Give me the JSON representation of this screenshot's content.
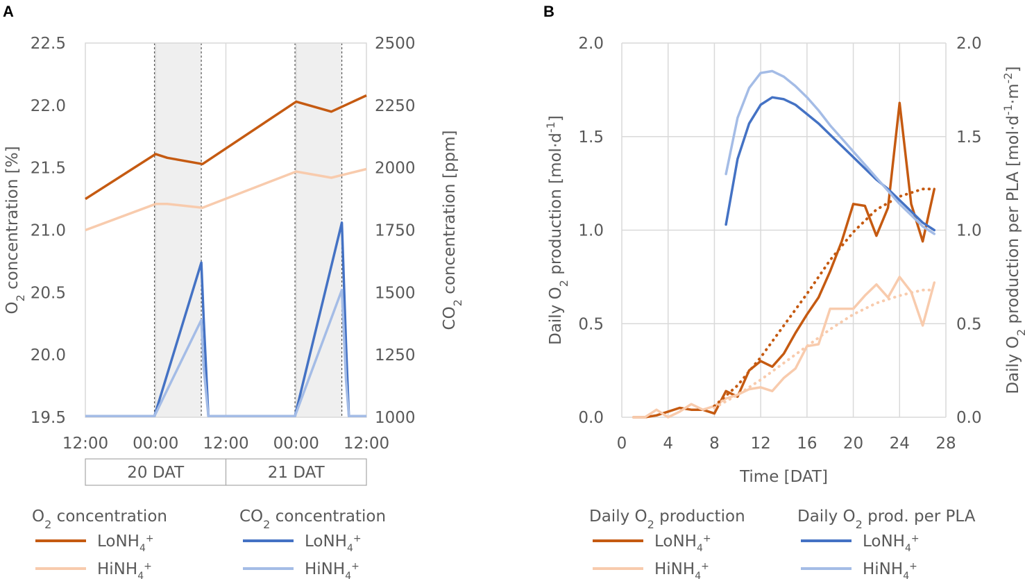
{
  "panel_labels": [
    "A",
    "B"
  ],
  "chart_data": [
    {
      "type": "line",
      "panel": "A",
      "x_ticks": [
        "12:00",
        "00:00",
        "12:00",
        "00:00",
        "12:00"
      ],
      "x_hours": [
        0,
        12,
        24,
        36,
        48
      ],
      "xlim": [
        0,
        48
      ],
      "day_labels": [
        "20 DAT",
        "21 DAT"
      ],
      "dark_periods_hours": [
        [
          11.8,
          19.8
        ],
        [
          35.8,
          43.8
        ]
      ],
      "ylabel_left": {
        "pre": "O",
        "sub": "2",
        "post": " concentration [%]"
      },
      "ylabel_right": {
        "pre": "CO",
        "sub": "2",
        "post": " concentration [ppm]"
      },
      "ylim_left": [
        19.5,
        22.5
      ],
      "ylim_right": [
        1000,
        2500
      ],
      "yticks_left": [
        "19.5",
        "20.0",
        "20.5",
        "21.0",
        "21.5",
        "22.0",
        "22.5"
      ],
      "yticks_right": [
        "1000",
        "1250",
        "1500",
        "1750",
        "2000",
        "2250",
        "2500"
      ],
      "series": [
        {
          "name": "O2 LoNH4+",
          "axis": "left",
          "color": "#C55A11",
          "x": [
            0,
            12,
            14,
            20,
            36,
            42,
            48
          ],
          "y": [
            21.25,
            21.61,
            21.58,
            21.53,
            22.03,
            21.95,
            22.08
          ]
        },
        {
          "name": "O2 HiNH4+",
          "axis": "left",
          "color": "#F8CBAD",
          "x": [
            0,
            12,
            14,
            20,
            36,
            42,
            48
          ],
          "y": [
            21.0,
            21.21,
            21.21,
            21.18,
            21.47,
            21.42,
            21.49
          ]
        },
        {
          "name": "CO2 LoNH4+",
          "axis": "right",
          "color": "#4472C4",
          "x": [
            0,
            11.8,
            19.8,
            20.2,
            21,
            35.8,
            43.8,
            44.5,
            45,
            48
          ],
          "y": [
            1005,
            1005,
            1620,
            1400,
            1005,
            1005,
            1780,
            1300,
            1005,
            1005
          ]
        },
        {
          "name": "CO2 HiNH4+",
          "axis": "right",
          "color": "#A4BCE6",
          "x": [
            0,
            11.8,
            19.8,
            20.2,
            21,
            35.8,
            43.8,
            44.5,
            45,
            48
          ],
          "y": [
            1005,
            1005,
            1390,
            1200,
            1005,
            1005,
            1510,
            1150,
            1005,
            1005
          ]
        }
      ],
      "legend": {
        "groups": [
          {
            "title_pre": "O",
            "title_sub": "2",
            "title_post": " concentration",
            "items": [
              {
                "label": "LoNH",
                "sub": "4",
                "sup": "+",
                "color": "#C55A11"
              },
              {
                "label": "HiNH",
                "sub": "4",
                "sup": "+",
                "color": "#F8CBAD"
              }
            ]
          },
          {
            "title_pre": "CO",
            "title_sub": "2",
            "title_post": " concentration",
            "items": [
              {
                "label": "LoNH",
                "sub": "4",
                "sup": "+",
                "color": "#4472C4"
              },
              {
                "label": "HiNH",
                "sub": "4",
                "sup": "+",
                "color": "#A4BCE6"
              }
            ]
          }
        ]
      }
    },
    {
      "type": "line",
      "panel": "B",
      "xlabel": "Time [DAT]",
      "xlim": [
        0,
        28
      ],
      "xticks": [
        0,
        4,
        8,
        12,
        16,
        20,
        24,
        28
      ],
      "ylim_left": [
        0,
        2
      ],
      "ylim_right": [
        0,
        2
      ],
      "yticks_left": [
        "0.0",
        "0.5",
        "1.0",
        "1.5",
        "2.0"
      ],
      "yticks_right": [
        "0.0",
        "0.5",
        "1.0",
        "1.5",
        "2.0"
      ],
      "ylabel_left": {
        "pre": "Daily O",
        "sub": "2",
        "post": " production [mol·d",
        "sup": "-1",
        "end": "]"
      },
      "ylabel_right": {
        "pre": "Daily O",
        "sub": "2",
        "post": " production per PLA [mol·d",
        "sup": "-1",
        "mid": "·m",
        "sup2": "-2",
        "end": "]"
      },
      "series": [
        {
          "name": "Daily O2 production LoNH4+",
          "axis": "left",
          "color": "#C55A11",
          "style": "solid",
          "x": [
            1,
            2,
            3,
            4,
            5,
            6,
            7,
            8,
            9,
            10,
            11,
            12,
            13,
            14,
            15,
            16,
            17,
            18,
            19,
            20,
            21,
            22,
            23,
            24,
            25,
            26,
            27
          ],
          "y": [
            0,
            0,
            0.01,
            0.03,
            0.05,
            0.04,
            0.04,
            0.02,
            0.14,
            0.11,
            0.25,
            0.3,
            0.27,
            0.34,
            0.45,
            0.55,
            0.64,
            0.78,
            0.94,
            1.14,
            1.13,
            0.97,
            1.12,
            1.68,
            1.14,
            0.94,
            1.22
          ]
        },
        {
          "name": "Daily O2 production HiNH4+",
          "axis": "left",
          "color": "#F8CBAD",
          "style": "solid",
          "x": [
            1,
            2,
            3,
            4,
            5,
            6,
            7,
            8,
            9,
            10,
            11,
            12,
            13,
            14,
            15,
            16,
            17,
            18,
            19,
            20,
            21,
            22,
            23,
            24,
            25,
            26,
            27
          ],
          "y": [
            0,
            0,
            0.04,
            0,
            0.03,
            0.07,
            0.04,
            0.06,
            0.1,
            0.12,
            0.15,
            0.16,
            0.14,
            0.21,
            0.26,
            0.38,
            0.39,
            0.58,
            0.58,
            0.58,
            0.65,
            0.71,
            0.64,
            0.75,
            0.67,
            0.49,
            0.72
          ]
        },
        {
          "name": "LoNH4+ trend",
          "axis": "left",
          "color": "#C55A11",
          "style": "dotted",
          "x": [
            8,
            10,
            12,
            14,
            16,
            18,
            20,
            22,
            24,
            26,
            27
          ],
          "y": [
            0.06,
            0.17,
            0.32,
            0.49,
            0.66,
            0.84,
            0.99,
            1.11,
            1.18,
            1.22,
            1.22
          ]
        },
        {
          "name": "HiNH4+ trend",
          "axis": "left",
          "color": "#F8CBAD",
          "style": "dotted",
          "x": [
            8,
            10,
            12,
            14,
            16,
            18,
            20,
            22,
            24,
            26,
            27
          ],
          "y": [
            0.05,
            0.12,
            0.2,
            0.29,
            0.38,
            0.47,
            0.55,
            0.61,
            0.65,
            0.68,
            0.68
          ]
        },
        {
          "name": "Daily O2 prod. per PLA LoNH4+",
          "axis": "right",
          "color": "#4472C4",
          "style": "solid",
          "x": [
            9,
            10,
            11,
            12,
            13,
            14,
            15,
            16,
            17,
            18,
            19,
            20,
            21,
            22,
            23,
            24,
            25,
            26,
            27
          ],
          "y": [
            1.03,
            1.38,
            1.57,
            1.67,
            1.71,
            1.7,
            1.67,
            1.62,
            1.57,
            1.51,
            1.45,
            1.39,
            1.33,
            1.27,
            1.22,
            1.16,
            1.1,
            1.04,
            1.0
          ]
        },
        {
          "name": "Daily O2 prod. per PLA HiNH4+",
          "axis": "right",
          "color": "#A4BCE6",
          "style": "solid",
          "x": [
            9,
            10,
            11,
            12,
            13,
            14,
            15,
            16,
            17,
            18,
            19,
            20,
            21,
            22,
            23,
            24,
            25,
            26,
            27
          ],
          "y": [
            1.3,
            1.6,
            1.76,
            1.84,
            1.85,
            1.82,
            1.77,
            1.71,
            1.64,
            1.56,
            1.49,
            1.42,
            1.35,
            1.28,
            1.21,
            1.14,
            1.08,
            1.02,
            0.98
          ]
        }
      ],
      "legend": {
        "groups": [
          {
            "title_pre": "Daily O",
            "title_sub": "2",
            "title_post": " production",
            "items": [
              {
                "label": "LoNH",
                "sub": "4",
                "sup": "+",
                "color": "#C55A11"
              },
              {
                "label": "HiNH",
                "sub": "4",
                "sup": "+",
                "color": "#F8CBAD"
              }
            ]
          },
          {
            "title_pre": "Daily O",
            "title_sub": "2",
            "title_post": " prod. per PLA",
            "items": [
              {
                "label": "LoNH",
                "sub": "4",
                "sup": "+",
                "color": "#4472C4"
              },
              {
                "label": "HiNH",
                "sub": "4",
                "sup": "+",
                "color": "#A4BCE6"
              }
            ]
          }
        ]
      }
    }
  ]
}
